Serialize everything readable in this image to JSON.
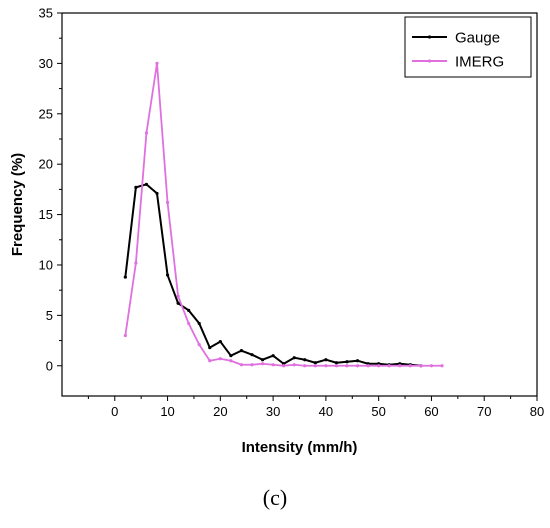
{
  "chart_data": {
    "type": "line",
    "title": "",
    "xlabel": "Intensity (mm/h)",
    "ylabel": "Frequency (%)",
    "xlim": [
      -10,
      80
    ],
    "ylim": [
      -3,
      35
    ],
    "xticks": [
      0,
      10,
      20,
      30,
      40,
      50,
      60,
      70,
      80
    ],
    "yticks": [
      0,
      5,
      10,
      15,
      20,
      25,
      30,
      35
    ],
    "grid": false,
    "legend_position": "top-right",
    "series": [
      {
        "name": "Gauge",
        "color": "#000000",
        "x": [
          2,
          4,
          6,
          8,
          10,
          12,
          14,
          16,
          18,
          20,
          22,
          24,
          26,
          28,
          30,
          32,
          34,
          36,
          38,
          40,
          42,
          44,
          46,
          48,
          50,
          52,
          54,
          56,
          58
        ],
        "y": [
          8.8,
          17.7,
          18.0,
          17.1,
          9.0,
          6.2,
          5.5,
          4.2,
          1.8,
          2.4,
          1.0,
          1.5,
          1.1,
          0.6,
          1.0,
          0.2,
          0.8,
          0.6,
          0.3,
          0.6,
          0.3,
          0.4,
          0.5,
          0.2,
          0.2,
          0.1,
          0.2,
          0.1,
          0.0
        ]
      },
      {
        "name": "IMERG",
        "color": "#e070e0",
        "x": [
          2,
          4,
          6,
          8,
          10,
          12,
          14,
          16,
          18,
          20,
          22,
          24,
          26,
          28,
          30,
          32,
          34,
          36,
          38,
          40,
          42,
          44,
          46,
          48,
          50,
          52,
          54,
          56,
          58,
          60,
          62
        ],
        "y": [
          3.0,
          10.2,
          23.1,
          30.0,
          16.2,
          6.9,
          4.2,
          2.1,
          0.5,
          0.7,
          0.5,
          0.1,
          0.1,
          0.2,
          0.1,
          0.0,
          0.1,
          0.0,
          0.0,
          0.0,
          0.0,
          0.0,
          0.0,
          0.0,
          0.0,
          0.0,
          0.0,
          0.0,
          0.0,
          0.0,
          0.0
        ]
      }
    ]
  },
  "panel_label": "(c)"
}
